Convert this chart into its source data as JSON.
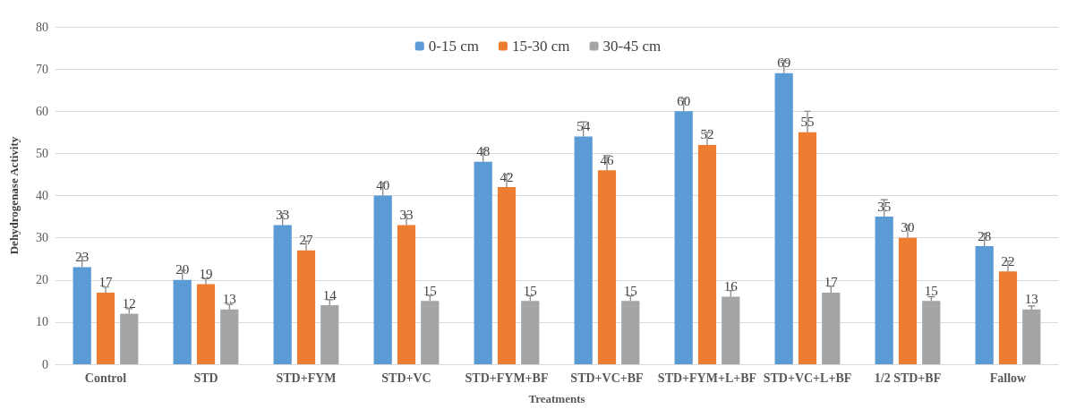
{
  "chart_data": {
    "type": "bar",
    "xlabel": "Treatments",
    "ylabel": "Dehydrogenase Activity",
    "categories": [
      "Control",
      "STD",
      "STD+FYM",
      "STD+VC",
      "STD+FYM+BF",
      "STD+VC+BF",
      "STD+FYM+L+BF",
      "STD+VC+L+BF",
      "1/2 STD+BF",
      "Fallow"
    ],
    "series": [
      {
        "name": "0-15 cm",
        "color": "#5b9bd5",
        "values": [
          23,
          20,
          33,
          40,
          48,
          54,
          60,
          69,
          35,
          28
        ],
        "errors": [
          [
            23,
            25.5
          ],
          [
            20,
            22.3
          ],
          [
            33,
            35.8
          ],
          [
            40,
            43
          ],
          [
            48,
            51
          ],
          [
            54,
            57.5
          ],
          [
            60,
            63
          ],
          [
            69,
            72
          ],
          [
            35,
            39
          ],
          [
            28,
            31
          ]
        ]
      },
      {
        "name": "15-30 cm",
        "color": "#ed7d31",
        "values": [
          17,
          19,
          27,
          33,
          42,
          46,
          52,
          55,
          30,
          22
        ],
        "errors": [
          [
            17,
            18.3
          ],
          [
            19,
            20.3
          ],
          [
            27,
            29.2
          ],
          [
            33,
            35.5
          ],
          [
            42,
            45
          ],
          [
            46,
            49.5
          ],
          [
            52,
            55
          ],
          [
            55,
            60
          ],
          [
            30,
            33
          ],
          [
            22,
            24.5
          ]
        ]
      },
      {
        "name": "30-45 cm",
        "color": "#a5a5a5",
        "values": [
          12,
          13,
          14,
          15,
          15,
          15,
          16,
          17,
          15,
          13
        ],
        "errors": [
          [
            12,
            13.2
          ],
          [
            13,
            14.2
          ],
          [
            14,
            15.3
          ],
          [
            15,
            16.3
          ],
          [
            15,
            16.2
          ],
          [
            15,
            16.2
          ],
          [
            16,
            17.5
          ],
          [
            17,
            18.5
          ],
          [
            15,
            16
          ],
          [
            13,
            13.8
          ]
        ]
      }
    ],
    "ylim": [
      0,
      80
    ],
    "yticks": [
      0,
      10,
      20,
      30,
      40,
      50,
      60,
      70,
      80
    ],
    "grid": "y",
    "legend": "top",
    "data_labels": true
  }
}
